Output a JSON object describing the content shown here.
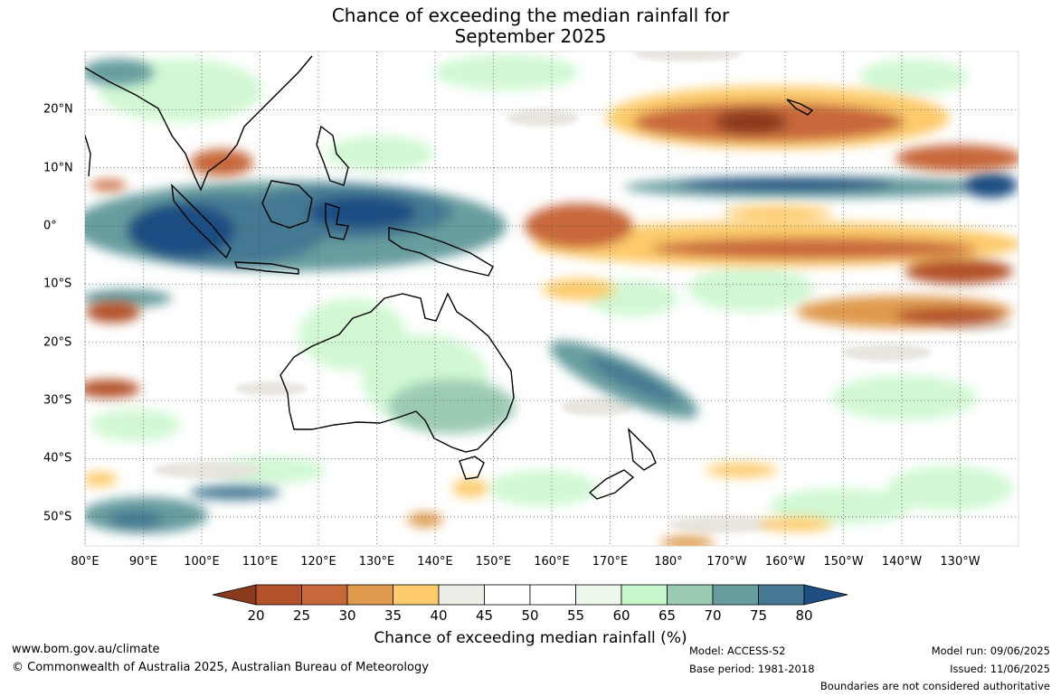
{
  "title": {
    "line1": "Chance of exceeding the median rainfall for",
    "line2": "September 2025"
  },
  "map": {
    "lon_labels": [
      "80°E",
      "90°E",
      "100°E",
      "110°E",
      "120°E",
      "130°E",
      "140°E",
      "150°E",
      "160°E",
      "170°E",
      "180°",
      "170°W",
      "160°W",
      "150°W",
      "140°W",
      "130°W"
    ],
    "lat_labels": [
      "20°N",
      "10°N",
      "0°",
      "10°S",
      "20°S",
      "30°S",
      "40°S",
      "50°S"
    ],
    "extent": {
      "lon_west": 80,
      "lon_east": 240,
      "lat_north": 30,
      "lat_south": -55
    }
  },
  "legend": {
    "title": "Chance of exceeding median rainfall (%)",
    "ticks": [
      "20",
      "25",
      "30",
      "35",
      "40",
      "45",
      "50",
      "55",
      "60",
      "65",
      "70",
      "75",
      "80"
    ],
    "colors": [
      "#8c3a1e",
      "#b3512a",
      "#c8683a",
      "#df9a4e",
      "#fdcb6c",
      "#eeece6",
      "#ffffff",
      "#ffffff",
      "#ecf8ec",
      "#c9f7cc",
      "#9ccbb4",
      "#689d9f",
      "#457993",
      "#1d4d82"
    ]
  },
  "footer": {
    "website": "www.bom.gov.au/climate",
    "copyright": "© Commonwealth of Australia 2025, Australian Bureau of Meteorology",
    "model": "Model: ACCESS-S2",
    "base_period": "Base period: 1981-2018",
    "model_run": "Model run: 09/06/2025",
    "issued": "Issued: 11/06/2025",
    "disclaimer": "Boundaries are not considered authoritative"
  }
}
